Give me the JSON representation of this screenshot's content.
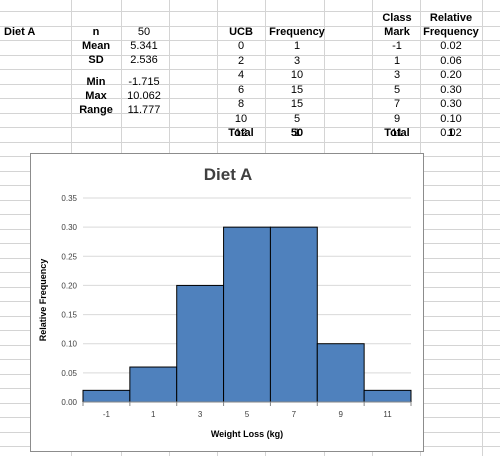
{
  "sheet": {
    "label_col": {
      "diet": "Diet A"
    },
    "stats": {
      "n_label": "n",
      "n_value": "50",
      "mean_label": "Mean",
      "mean_value": "5.341",
      "sd_label": "SD",
      "sd_value": "2.536",
      "min_label": "Min",
      "min_value": "-1.715",
      "max_label": "Max",
      "max_value": "10.062",
      "range_label": "Range",
      "range_value": "11.777"
    },
    "freq_table": {
      "ucb_header": "UCB",
      "freq_header": "Frequency",
      "rows": [
        {
          "ucb": "0",
          "freq": "1"
        },
        {
          "ucb": "2",
          "freq": "3"
        },
        {
          "ucb": "4",
          "freq": "10"
        },
        {
          "ucb": "6",
          "freq": "15"
        },
        {
          "ucb": "8",
          "freq": "15"
        },
        {
          "ucb": "10",
          "freq": "5"
        },
        {
          "ucb": "12",
          "freq": "1"
        }
      ],
      "total_label": "Total",
      "total_value": "50"
    },
    "rel_table": {
      "mark_header_1": "Class",
      "mark_header_2": "Mark",
      "rel_header_1": "Relative",
      "rel_header_2": "Frequency",
      "rows": [
        {
          "mark": "-1",
          "rel": "0.02"
        },
        {
          "mark": "1",
          "rel": "0.06"
        },
        {
          "mark": "3",
          "rel": "0.20"
        },
        {
          "mark": "5",
          "rel": "0.30"
        },
        {
          "mark": "7",
          "rel": "0.30"
        },
        {
          "mark": "9",
          "rel": "0.10"
        },
        {
          "mark": "11",
          "rel": "0.02"
        }
      ],
      "total_label": "Total",
      "total_value": "1"
    }
  },
  "colors": {
    "bar_fill": "#4f81bd",
    "bar_stroke": "#000000",
    "gridline": "#d9d9d9",
    "axis": "#868686"
  },
  "chart_data": {
    "type": "bar",
    "title": "Diet A",
    "xlabel": "Weight Loss (kg)",
    "ylabel": "Relative Frequency",
    "categories": [
      "-1",
      "1",
      "3",
      "5",
      "7",
      "9",
      "11"
    ],
    "values": [
      0.02,
      0.06,
      0.2,
      0.3,
      0.3,
      0.1,
      0.02
    ],
    "ylim": [
      0,
      0.35
    ],
    "yticks": [
      "0.00",
      "0.05",
      "0.10",
      "0.15",
      "0.20",
      "0.25",
      "0.30",
      "0.35"
    ],
    "grid": true,
    "legend": "none"
  }
}
